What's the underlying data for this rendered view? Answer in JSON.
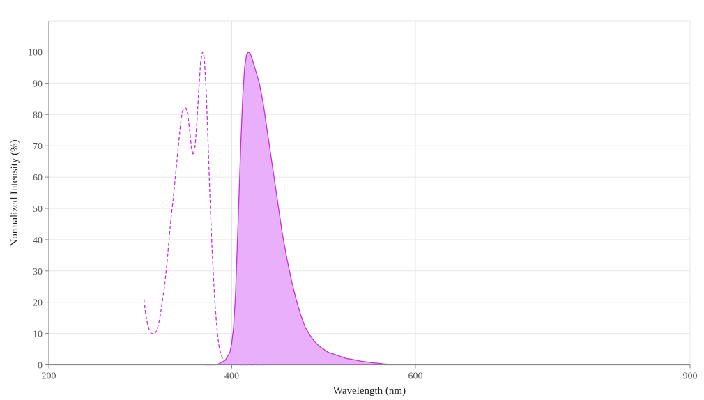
{
  "chart_data": {
    "type": "line",
    "title": "",
    "xlabel": "Wavelength (nm)",
    "ylabel": "Normalized Intensity (%)",
    "xlim": [
      200,
      900
    ],
    "ylim": [
      0,
      110
    ],
    "x_ticks": [
      200,
      400,
      600,
      900
    ],
    "y_ticks": [
      0,
      10,
      20,
      30,
      40,
      50,
      60,
      70,
      80,
      90,
      100
    ],
    "x_tick_labels": [
      "200",
      "400",
      "600",
      "900"
    ],
    "y_tick_labels": [
      "0",
      "10",
      "20",
      "30",
      "40",
      "50",
      "60",
      "70",
      "80",
      "90",
      "100"
    ],
    "grid": true,
    "legend": false,
    "series": [
      {
        "role": "excitation",
        "style": "dashed",
        "fill": false,
        "color": "#c52fe0",
        "x": [
          304,
          306,
          308,
          310,
          312,
          314,
          316,
          318,
          320,
          322,
          324,
          326,
          328,
          330,
          332,
          334,
          336,
          338,
          340,
          342,
          344,
          346,
          348,
          350,
          352,
          354,
          356,
          358,
          360,
          362,
          364,
          366,
          368,
          370,
          372,
          374,
          376,
          378,
          380,
          382,
          384,
          386,
          388,
          390,
          392,
          394,
          396,
          398,
          400,
          402,
          404,
          406,
          408,
          410,
          412,
          414,
          416,
          418,
          420,
          422,
          424,
          426,
          428,
          430,
          432,
          434,
          436
        ],
        "y": [
          21,
          16,
          13,
          11,
          10,
          10,
          10,
          11,
          13,
          16,
          20,
          24,
          29,
          35,
          42,
          48,
          53,
          59,
          65,
          71,
          77,
          81,
          82,
          82,
          80,
          75,
          69,
          67,
          70,
          78,
          88,
          97,
          100,
          98,
          88,
          72,
          55,
          40,
          28,
          18,
          11,
          6,
          3.5,
          2,
          1.2,
          0.8,
          0.5,
          0.3,
          0.2,
          0.1,
          0,
          0,
          0,
          0,
          0,
          0,
          0,
          0,
          0,
          0,
          0,
          0,
          0,
          0,
          0,
          0,
          0
        ]
      },
      {
        "role": "emission",
        "style": "solid",
        "fill": true,
        "color": "#c52fe0",
        "fill_color": "#eaaffa",
        "x": [
          370,
          375,
          380,
          385,
          390,
          393,
          395,
          398,
          400,
          402,
          404,
          406,
          408,
          410,
          412,
          414,
          416,
          418,
          420,
          422,
          424,
          426,
          428,
          430,
          432,
          434,
          436,
          438,
          440,
          442,
          444,
          446,
          448,
          450,
          455,
          460,
          465,
          470,
          475,
          480,
          485,
          490,
          495,
          500,
          505,
          510,
          515,
          520,
          525,
          530,
          535,
          540,
          545,
          550,
          555,
          560,
          565,
          570,
          575,
          575
        ],
        "y": [
          0,
          0,
          0,
          0.2,
          1,
          1.5,
          2.5,
          4,
          7,
          12,
          22,
          38,
          55,
          72,
          86,
          95,
          99,
          100,
          99.5,
          98,
          96,
          94,
          92,
          90,
          87,
          84,
          80,
          76,
          72,
          68,
          64,
          60,
          56,
          52,
          42,
          34,
          27,
          21,
          16,
          12,
          9.5,
          7.5,
          6,
          5,
          4,
          3.5,
          3,
          2.5,
          2,
          1.8,
          1.5,
          1.2,
          1,
          0.8,
          0.6,
          0.5,
          0.3,
          0.2,
          0.1,
          0
        ]
      }
    ]
  }
}
